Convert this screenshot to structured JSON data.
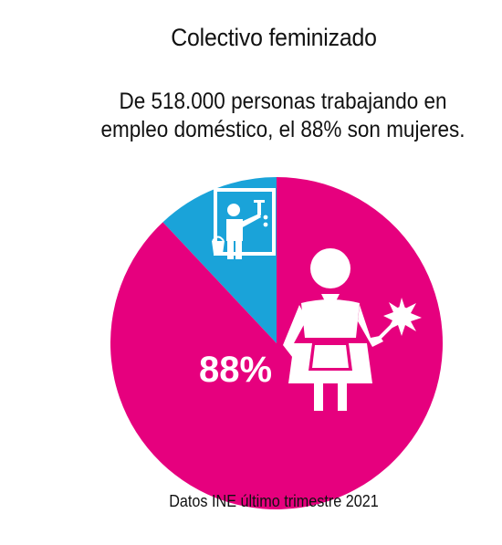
{
  "header": {
    "title": "Colectivo feminizado",
    "subtitle_line1": "De 518.000 personas trabajando en",
    "subtitle_line2": "empleo doméstico, el 88% son mujeres."
  },
  "footer": {
    "source": "Datos INE último trimestre 2021"
  },
  "chart_data": {
    "type": "pie",
    "title": "Colectivo feminizado",
    "subtitle": "De 518.000 personas trabajando en empleo doméstico, el 88% son mujeres.",
    "slices": [
      {
        "label": "mujeres",
        "value": 88,
        "color": "#E6007E",
        "icon": "woman-with-duster-icon",
        "data_label": "88%"
      },
      {
        "label": "",
        "value": 12,
        "color": "#1AA3D9",
        "icon": "man-cleaning-window-icon",
        "data_label": ""
      }
    ],
    "note": "Datos INE último trimestre 2021"
  }
}
